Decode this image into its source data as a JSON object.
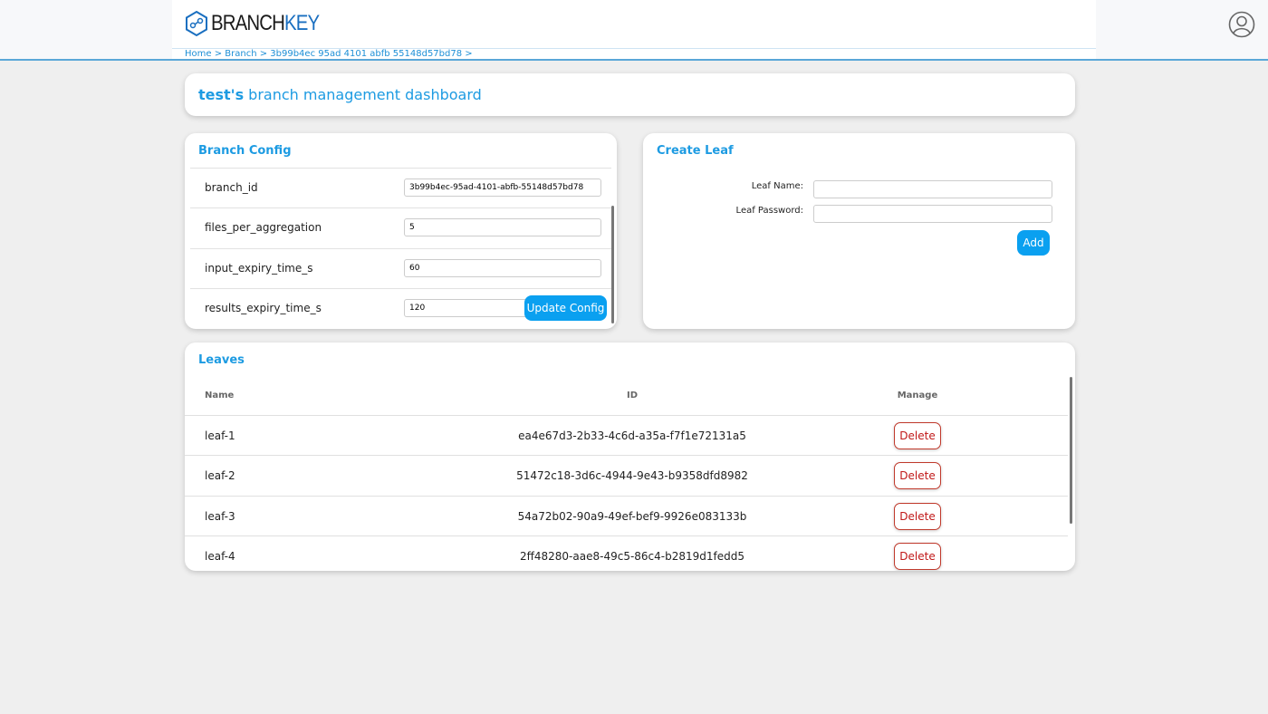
{
  "header": {
    "logo_text_a": "BRANCH",
    "logo_text_b": "KEY",
    "breadcrumb": "Home > Branch > 3b99b4ec 95ad 4101 abfb 55148d57bd78 >"
  },
  "title": {
    "user": "test's",
    "rest": " branch management dashboard"
  },
  "branch_config": {
    "title": "Branch Config",
    "rows": [
      {
        "label": "branch_id",
        "value": "3b99b4ec-95ad-4101-abfb-55148d57bd78"
      },
      {
        "label": "files_per_aggregation",
        "value": "5"
      },
      {
        "label": "input_expiry_time_s",
        "value": "60"
      },
      {
        "label": "results_expiry_time_s",
        "value": "120"
      }
    ],
    "update_label": "Update Config"
  },
  "create_leaf": {
    "title": "Create Leaf",
    "name_label": "Leaf Name:",
    "password_label": "Leaf Password:",
    "name_value": "",
    "password_value": "",
    "add_label": "Add"
  },
  "leaves": {
    "title": "Leaves",
    "columns": [
      "Name",
      "ID",
      "Manage"
    ],
    "delete_label": "Delete",
    "rows": [
      {
        "name": "leaf-1",
        "id": "ea4e67d3-2b33-4c6d-a35a-f7f1e72131a5"
      },
      {
        "name": "leaf-2",
        "id": "51472c18-3d6c-4944-9e43-b9358dfd8982"
      },
      {
        "name": "leaf-3",
        "id": "54a72b02-90a9-49ef-bef9-9926e083133b"
      },
      {
        "name": "leaf-4",
        "id": "2ff48280-aae8-49c5-86c4-b2819d1fedd5"
      }
    ]
  },
  "colors": {
    "accent": "#1d9be2",
    "button": "#0aa0f0",
    "danger": "#c01818"
  }
}
